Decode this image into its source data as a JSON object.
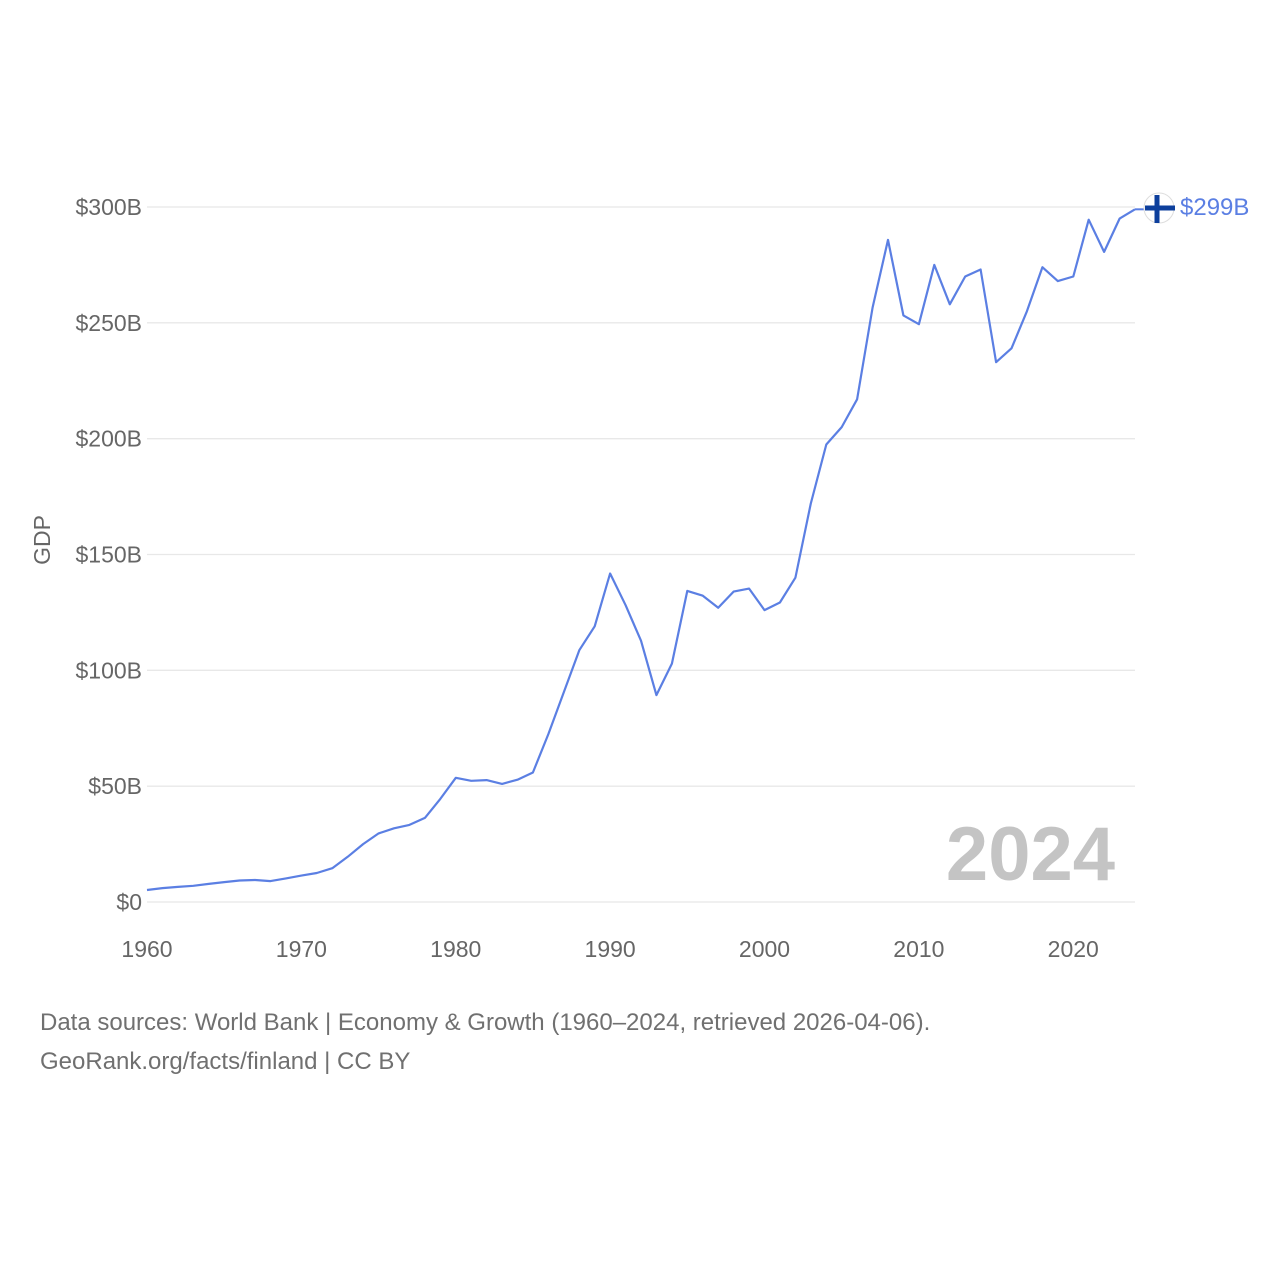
{
  "chart_data": {
    "type": "line",
    "ylabel": "GDP",
    "xlabel": "",
    "xlim": [
      1960,
      2024
    ],
    "ylim": [
      0,
      300
    ],
    "y_unit": "billion USD",
    "yticks": [
      {
        "value": 0,
        "label": "$0"
      },
      {
        "value": 50,
        "label": "$50B"
      },
      {
        "value": 100,
        "label": "$100B"
      },
      {
        "value": 150,
        "label": "$150B"
      },
      {
        "value": 200,
        "label": "$200B"
      },
      {
        "value": 250,
        "label": "$250B"
      },
      {
        "value": 300,
        "label": "$300B"
      }
    ],
    "xticks": [
      {
        "value": 1960,
        "label": "1960"
      },
      {
        "value": 1970,
        "label": "1970"
      },
      {
        "value": 1980,
        "label": "1980"
      },
      {
        "value": 1990,
        "label": "1990"
      },
      {
        "value": 2000,
        "label": "2000"
      },
      {
        "value": 2010,
        "label": "2010"
      },
      {
        "value": 2020,
        "label": "2020"
      }
    ],
    "grid": true,
    "series": [
      {
        "name": "Finland",
        "color": "#5b7fe3",
        "x": [
          1960,
          1961,
          1962,
          1963,
          1964,
          1965,
          1966,
          1967,
          1968,
          1969,
          1970,
          1971,
          1972,
          1973,
          1974,
          1975,
          1976,
          1977,
          1978,
          1979,
          1980,
          1981,
          1982,
          1983,
          1984,
          1985,
          1986,
          1987,
          1988,
          1989,
          1990,
          1991,
          1992,
          1993,
          1994,
          1995,
          1996,
          1997,
          1998,
          1999,
          2000,
          2001,
          2002,
          2003,
          2004,
          2005,
          2006,
          2007,
          2008,
          2009,
          2010,
          2011,
          2012,
          2013,
          2014,
          2015,
          2016,
          2017,
          2018,
          2019,
          2020,
          2021,
          2022,
          2023,
          2024
        ],
        "values": [
          5.2,
          6.0,
          6.5,
          7.0,
          7.8,
          8.6,
          9.3,
          9.5,
          9.0,
          10.2,
          11.4,
          12.5,
          14.6,
          19.5,
          25.0,
          29.6,
          31.8,
          33.3,
          36.3,
          44.5,
          53.6,
          52.3,
          52.6,
          51.0,
          52.8,
          55.9,
          72.5,
          90.5,
          108.7,
          119.0,
          141.8,
          128.1,
          112.8,
          89.3,
          102.9,
          134.3,
          132.2,
          127.0,
          134.0,
          135.3,
          126.0,
          129.3,
          140.0,
          172.0,
          197.5,
          205.0,
          217.0,
          256.6,
          285.8,
          253.2,
          249.4,
          275.0,
          258.0,
          270.0,
          273.0,
          233.0,
          239.0,
          255.0,
          274.0,
          268.0,
          270.0,
          294.5,
          280.6,
          295.0,
          299.0
        ]
      }
    ],
    "end_label": "$299B",
    "current_year": "2024",
    "legend": "none"
  },
  "footer": {
    "line1": "Data sources: World Bank | Economy & Growth (1960–2024, retrieved 2026-04-06).",
    "line2": "GeoRank.org/facts/finland | CC BY"
  },
  "flag": {
    "name": "finland-flag",
    "background": "#ffffff",
    "cross": "#0d3f9c"
  }
}
